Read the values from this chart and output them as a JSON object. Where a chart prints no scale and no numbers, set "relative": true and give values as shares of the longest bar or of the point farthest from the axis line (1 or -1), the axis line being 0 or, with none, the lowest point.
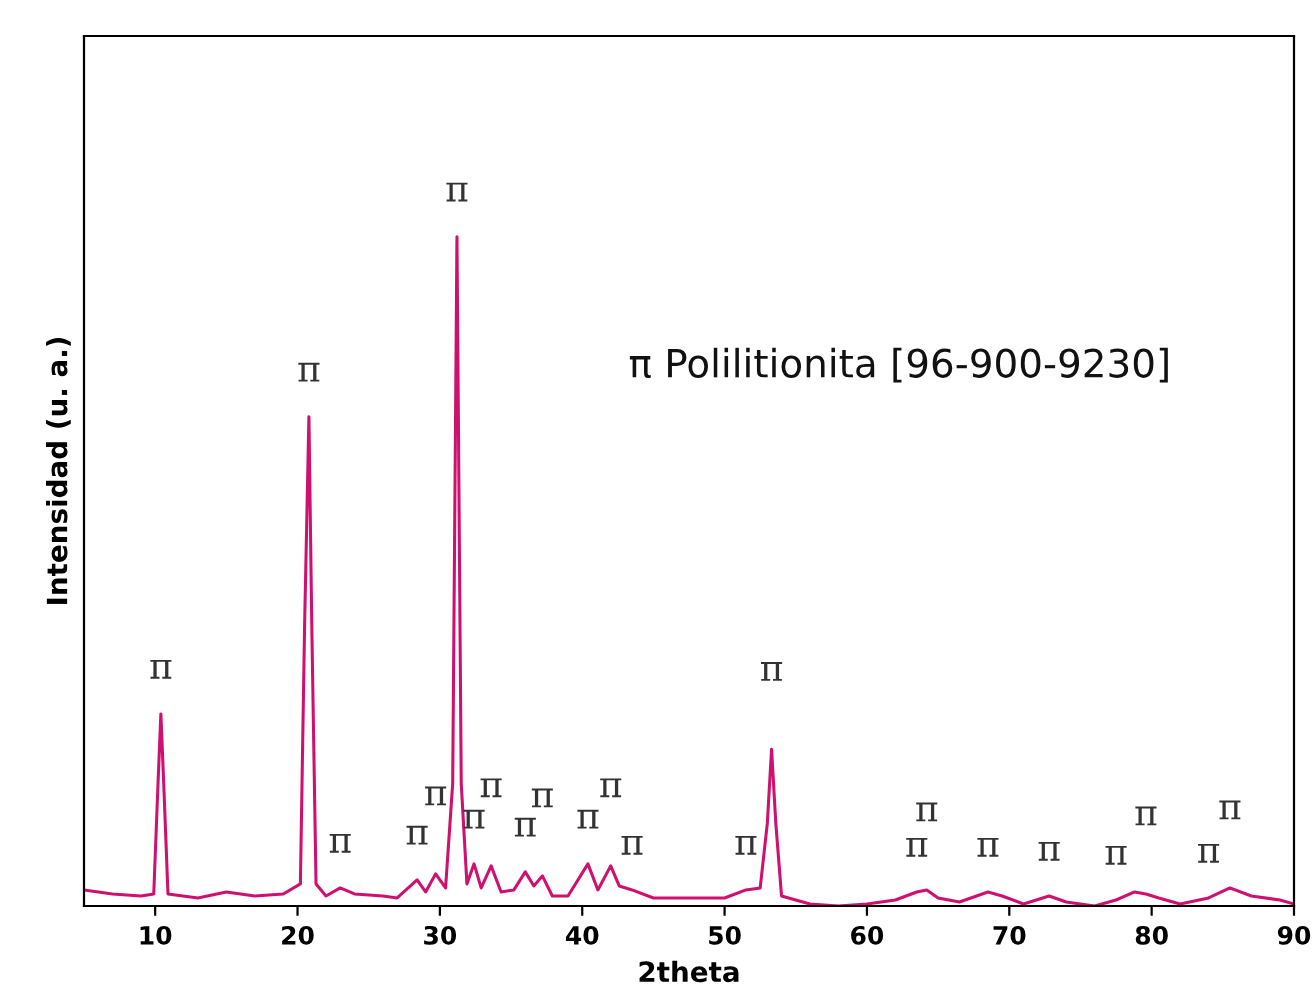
{
  "chart_data": {
    "type": "line",
    "relative": true,
    "xlabel": "2theta",
    "ylabel": "Intensidad (u. a.)",
    "xlim": [
      5,
      90
    ],
    "xticks": [
      10,
      20,
      30,
      40,
      50,
      60,
      70,
      80,
      90
    ],
    "grid": false,
    "marker": "none",
    "line_style": "solid",
    "series": [
      {
        "color": "#d0106e",
        "x": [
          5,
          7,
          9,
          9.9,
          10.2,
          10.4,
          10.6,
          10.9,
          13,
          15,
          17,
          19,
          20.2,
          20.5,
          20.8,
          21.0,
          21.3,
          22,
          23,
          24,
          26,
          27,
          28.4,
          29,
          29.7,
          30.4,
          30.9,
          31.2,
          31.5,
          31.9,
          32.4,
          32.9,
          33.6,
          34.3,
          35.2,
          36.0,
          36.6,
          37.2,
          37.9,
          39,
          40.4,
          41.1,
          42.0,
          42.6,
          43.5,
          45,
          48,
          50,
          51.5,
          52.5,
          53.0,
          53.3,
          53.6,
          54.0,
          56,
          58,
          60,
          62,
          63.5,
          64.2,
          65,
          66.5,
          68.5,
          69.5,
          71,
          72.8,
          74,
          76,
          77.5,
          78.8,
          79.6,
          80.5,
          82,
          84,
          85.5,
          87,
          89,
          90
        ],
        "values": [
          0.024,
          0.018,
          0.015,
          0.018,
          0.183,
          0.287,
          0.183,
          0.018,
          0.012,
          0.021,
          0.015,
          0.018,
          0.033,
          0.422,
          0.731,
          0.422,
          0.033,
          0.015,
          0.027,
          0.018,
          0.015,
          0.012,
          0.039,
          0.021,
          0.048,
          0.027,
          0.183,
          1,
          0.183,
          0.033,
          0.063,
          0.027,
          0.06,
          0.021,
          0.024,
          0.051,
          0.03,
          0.045,
          0.015,
          0.015,
          0.063,
          0.024,
          0.06,
          0.03,
          0.024,
          0.012,
          0.012,
          0.012,
          0.024,
          0.027,
          0.123,
          0.234,
          0.123,
          0.015,
          0.003,
          0,
          0.003,
          0.009,
          0.021,
          0.024,
          0.012,
          0.006,
          0.021,
          0.015,
          0.003,
          0.015,
          0.006,
          0,
          0.009,
          0.021,
          0.018,
          0.012,
          0.003,
          0.012,
          0.027,
          0.015,
          0.009,
          0.003
        ]
      }
    ],
    "annotations": [
      "π Polilitionita [96-900-9230]",
      {
        "text": "π",
        "x": 10.4,
        "y": 0.287
      },
      {
        "text": "π",
        "x": 20.8,
        "y": 0.731
      },
      {
        "text": "π",
        "x": 31.2,
        "y": 1
      },
      {
        "text": "π",
        "x": 23,
        "y": 0.027
      },
      {
        "text": "π",
        "x": 28.4,
        "y": 0.039
      },
      {
        "text": "π",
        "x": 29.7,
        "y": 0.048
      },
      {
        "text": "π",
        "x": 32.4,
        "y": 0.063
      },
      {
        "text": "π",
        "x": 33.6,
        "y": 0.06
      },
      {
        "text": "π",
        "x": 36.0,
        "y": 0.051
      },
      {
        "text": "π",
        "x": 37.2,
        "y": 0.045
      },
      {
        "text": "π",
        "x": 40.4,
        "y": 0.063
      },
      {
        "text": "π",
        "x": 42.0,
        "y": 0.06
      },
      {
        "text": "π",
        "x": 43.5,
        "y": 0.024
      },
      {
        "text": "π",
        "x": 51.5,
        "y": 0.024
      },
      {
        "text": "π",
        "x": 53.3,
        "y": 0.234
      },
      {
        "text": "π",
        "x": 63.5,
        "y": 0.021
      },
      {
        "text": "π",
        "x": 64.2,
        "y": 0.024
      },
      {
        "text": "π",
        "x": 68.5,
        "y": 0.021
      },
      {
        "text": "π",
        "x": 72.8,
        "y": 0.015
      },
      {
        "text": "π",
        "x": 77.5,
        "y": 0.009
      },
      {
        "text": "π",
        "x": 79.6,
        "y": 0.018
      },
      {
        "text": "π",
        "x": 84,
        "y": 0.012
      },
      {
        "text": "π",
        "x": 85.5,
        "y": 0.027
      }
    ]
  }
}
